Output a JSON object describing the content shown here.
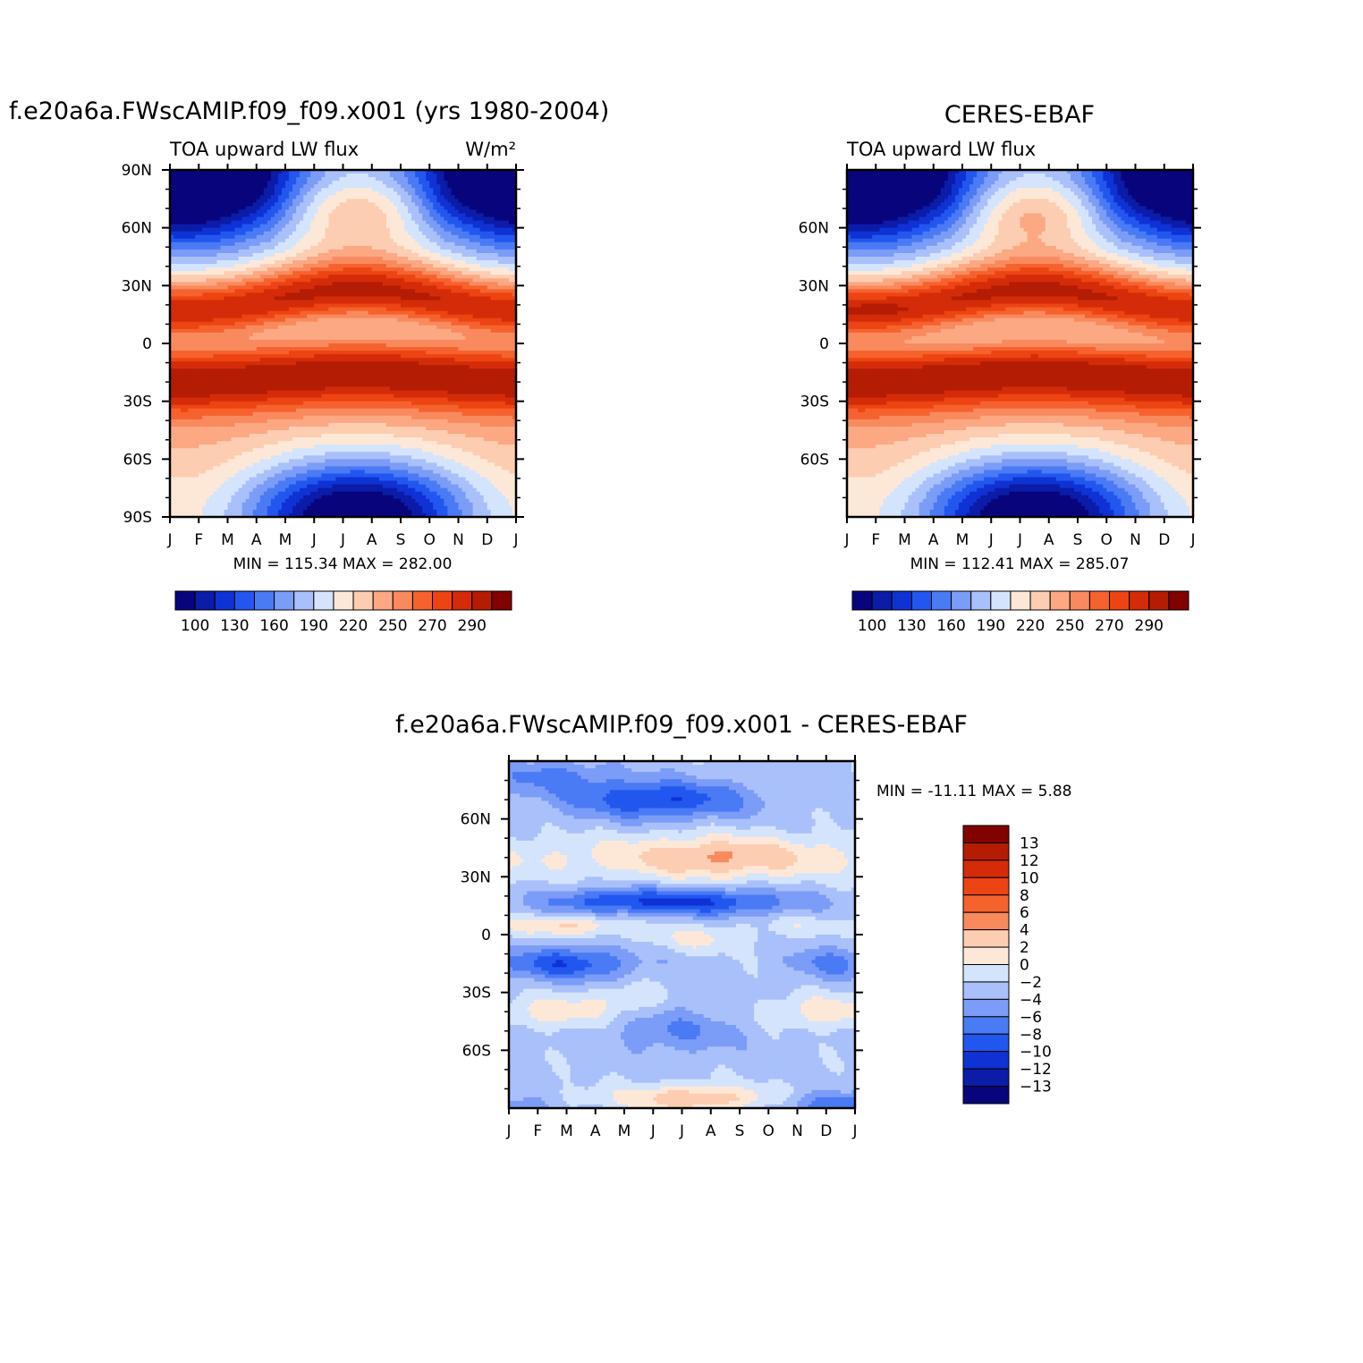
{
  "figure": {
    "left_title": "f.e20a6a.FWscAMIP.f09_f09.x001 (yrs 1980-2004)",
    "right_title": "CERES-EBAF",
    "diff_title": "f.e20a6a.FWscAMIP.f09_f09.x001 - CERES-EBAF"
  },
  "chart_data": [
    {
      "type": "heatmap",
      "name": "model",
      "title": "f.e20a6a.FWscAMIP.f09_f09.x001 (yrs 1980-2004)",
      "variable_label": "TOA upward LW flux",
      "units_label": "W/m²",
      "x_ticks": [
        "J",
        "F",
        "M",
        "A",
        "M",
        "J",
        "J",
        "A",
        "S",
        "O",
        "N",
        "D",
        "J"
      ],
      "y_ticks": [
        "90N",
        "60N",
        "30N",
        "0",
        "30S",
        "60S",
        "90S"
      ],
      "ylim": [
        -90,
        90
      ],
      "stats": "MIN = 115.34 MAX = 282.00",
      "min": 115.34,
      "max": 282.0,
      "levels": [
        100,
        110,
        120,
        130,
        140,
        150,
        160,
        170,
        180,
        190,
        200,
        210,
        220,
        230,
        240,
        250,
        260,
        270,
        280,
        290
      ],
      "colorbar_labels": [
        "100",
        "130",
        "160",
        "190",
        "220",
        "250",
        "270",
        "290"
      ]
    },
    {
      "type": "heatmap",
      "name": "obs",
      "title": "CERES-EBAF",
      "variable_label": "TOA upward LW flux",
      "x_ticks": [
        "J",
        "F",
        "M",
        "A",
        "M",
        "J",
        "J",
        "A",
        "S",
        "O",
        "N",
        "D",
        "J"
      ],
      "y_ticks": [
        "",
        "60N",
        "30N",
        "0",
        "30S",
        "60S",
        ""
      ],
      "ylim": [
        -90,
        90
      ],
      "stats": "MIN = 112.41 MAX = 285.07",
      "min": 112.41,
      "max": 285.07,
      "levels": [
        100,
        110,
        120,
        130,
        140,
        150,
        160,
        170,
        180,
        190,
        200,
        210,
        220,
        230,
        240,
        250,
        260,
        270,
        280,
        290
      ],
      "colorbar_labels": [
        "100",
        "130",
        "160",
        "190",
        "220",
        "250",
        "270",
        "290"
      ]
    },
    {
      "type": "heatmap",
      "name": "difference",
      "title": "f.e20a6a.FWscAMIP.f09_f09.x001 - CERES-EBAF",
      "x_ticks": [
        "J",
        "F",
        "M",
        "A",
        "M",
        "J",
        "J",
        "A",
        "S",
        "O",
        "N",
        "D",
        "J"
      ],
      "y_ticks": [
        "",
        "60N",
        "30N",
        "0",
        "30S",
        "60S",
        ""
      ],
      "ylim": [
        -90,
        90
      ],
      "stats": "MIN = -11.11 MAX = 5.88",
      "min": -11.11,
      "max": 5.88,
      "levels": [
        -13,
        -12,
        -10,
        -8,
        -6,
        -4,
        -2,
        0,
        2,
        4,
        6,
        8,
        10,
        12,
        13
      ],
      "colorbar_labels": [
        "13",
        "12",
        "10",
        "8",
        "6",
        "4",
        "2",
        "0",
        "−2",
        "−4",
        "−6",
        "−8",
        "−10",
        "−12",
        "−13"
      ]
    }
  ],
  "colors": {
    "abs_palette": [
      "#08057c",
      "#0a1ca8",
      "#0f32d4",
      "#2257ef",
      "#4a7af4",
      "#7b9cf7",
      "#a9c0fa",
      "#d4e4fc",
      "#fde8d8",
      "#fdcdb2",
      "#fba883",
      "#f98a5e",
      "#f6622e",
      "#ec4412",
      "#d42c08",
      "#b41c04",
      "#820200"
    ],
    "diff_palette": [
      "#820200",
      "#b41c04",
      "#d42c08",
      "#ec4412",
      "#f6622e",
      "#f98a5e",
      "#fdcdb2",
      "#fde8d8",
      "#d4e4fc",
      "#a9c0fa",
      "#7b9cf7",
      "#4a7af4",
      "#2257ef",
      "#0f32d4",
      "#0a1ca8",
      "#08057c"
    ]
  }
}
